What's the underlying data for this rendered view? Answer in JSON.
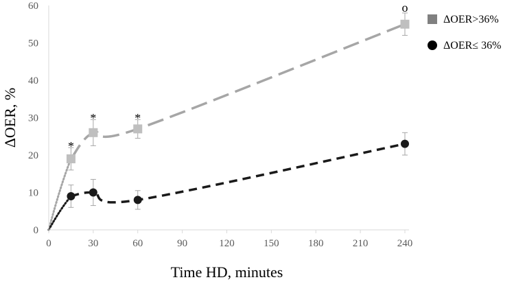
{
  "chart_data": {
    "type": "line",
    "xlabel": "Time HD, minutes",
    "ylabel": "ΔOER, %",
    "xlim": [
      0,
      240
    ],
    "ylim": [
      0,
      60
    ],
    "x_ticks": [
      0,
      30,
      60,
      90,
      120,
      150,
      180,
      210,
      240
    ],
    "y_ticks": [
      0,
      10,
      20,
      30,
      40,
      50,
      60
    ],
    "grid": false,
    "legend_position": "top-right",
    "series": [
      {
        "name": "ΔOER>36%",
        "marker": "square",
        "color": "#a6a6a6",
        "marker_color": "#bfbfbf",
        "legend_marker_color": "#808080",
        "x": [
          0,
          15,
          30,
          60,
          240
        ],
        "y": [
          0,
          19,
          26,
          27,
          55
        ],
        "error": [
          0,
          3,
          3.5,
          2.5,
          3
        ]
      },
      {
        "name": "ΔOER≤ 36%",
        "marker": "circle",
        "color": "#1a1a1a",
        "marker_color": "#1a1a1a",
        "legend_marker_color": "#000000",
        "x": [
          0,
          15,
          30,
          60,
          240
        ],
        "y": [
          0,
          9,
          10,
          8,
          23
        ],
        "error": [
          0,
          3,
          3.5,
          2.5,
          3
        ]
      }
    ],
    "annotations": [
      {
        "x": 15,
        "y": 22,
        "text": "*"
      },
      {
        "x": 30,
        "y": 29.5,
        "text": "*"
      },
      {
        "x": 60,
        "y": 29.5,
        "text": "*"
      },
      {
        "x": 240,
        "y": 58,
        "text": "o"
      }
    ]
  }
}
